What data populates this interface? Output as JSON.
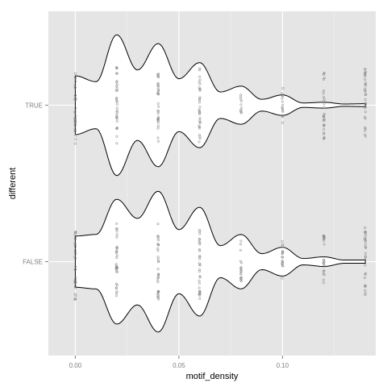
{
  "chart_data": {
    "type": "violin",
    "xlabel": "motif_density",
    "ylabel": "different",
    "xlim": [
      -0.013,
      0.145
    ],
    "x_ticks": [
      0.0,
      0.05,
      0.1
    ],
    "x_tick_labels": [
      "0.00",
      "0.05",
      "0.10"
    ],
    "categories": [
      "FALSE",
      "TRUE"
    ],
    "grid": true,
    "panel_background": "#e5e5e5",
    "grid_color": "#ffffff",
    "violin_fill": "#ffffff",
    "violin_outline": "#000000",
    "point_color": "#7f7f7f",
    "series": [
      {
        "category": "TRUE",
        "density_profile": [
          [
            0.0,
            0.2
          ],
          [
            0.01,
            0.16
          ],
          [
            0.02,
            0.48
          ],
          [
            0.03,
            0.24
          ],
          [
            0.04,
            0.42
          ],
          [
            0.05,
            0.18
          ],
          [
            0.06,
            0.29
          ],
          [
            0.07,
            0.09
          ],
          [
            0.08,
            0.13
          ],
          [
            0.09,
            0.04
          ],
          [
            0.1,
            0.07
          ],
          [
            0.11,
            0.015
          ],
          [
            0.12,
            0.02
          ],
          [
            0.13,
            0.008
          ],
          [
            0.14,
            0.01
          ]
        ],
        "points": [
          {
            "x": 0.0,
            "spread": 0.55
          },
          {
            "x": 0.02,
            "spread": 0.52
          },
          {
            "x": 0.04,
            "spread": 0.52
          },
          {
            "x": 0.06,
            "spread": 0.52
          },
          {
            "x": 0.08,
            "spread": 0.16
          },
          {
            "x": 0.1,
            "spread": 0.25
          },
          {
            "x": 0.12,
            "spread": 0.46
          },
          {
            "x": 0.14,
            "spread": 0.5
          }
        ]
      },
      {
        "category": "FALSE",
        "density_profile": [
          [
            0.0,
            0.16
          ],
          [
            0.01,
            0.17
          ],
          [
            0.02,
            0.39
          ],
          [
            0.03,
            0.27
          ],
          [
            0.04,
            0.44
          ],
          [
            0.05,
            0.2
          ],
          [
            0.06,
            0.34
          ],
          [
            0.07,
            0.1
          ],
          [
            0.08,
            0.17
          ],
          [
            0.09,
            0.05
          ],
          [
            0.1,
            0.09
          ],
          [
            0.11,
            0.02
          ],
          [
            0.12,
            0.03
          ],
          [
            0.13,
            0.01
          ],
          [
            0.14,
            0.01
          ]
        ],
        "points": [
          {
            "x": 0.0,
            "spread": 0.55
          },
          {
            "x": 0.02,
            "spread": 0.52
          },
          {
            "x": 0.04,
            "spread": 0.52
          },
          {
            "x": 0.06,
            "spread": 0.52
          },
          {
            "x": 0.08,
            "spread": 0.28
          },
          {
            "x": 0.1,
            "spread": 0.29
          },
          {
            "x": 0.12,
            "spread": 0.36
          },
          {
            "x": 0.14,
            "spread": 0.47
          }
        ]
      }
    ]
  }
}
